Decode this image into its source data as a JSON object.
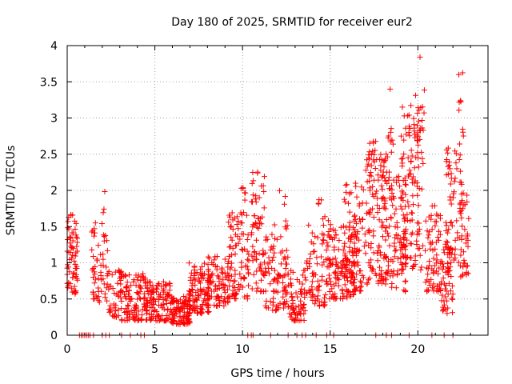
{
  "chart_data": {
    "type": "scatter",
    "title": "Day 180 of 2025, SRMTID for receiver eur2",
    "xlabel": "GPS time / hours",
    "ylabel": "SRMTID / TECUs",
    "xlim": [
      0,
      24
    ],
    "ylim": [
      0,
      4
    ],
    "xticks": [
      0,
      5,
      10,
      15,
      20
    ],
    "yticks": [
      0,
      0.5,
      1,
      1.5,
      2,
      2.5,
      3,
      3.5,
      4
    ],
    "ytick_labels": [
      "0",
      "0.5",
      "1",
      "1.5",
      "2",
      "2.5",
      "3",
      "3.5",
      "4"
    ],
    "grid": true,
    "marker": "plus",
    "color": "#ff0000",
    "series": [
      {
        "name": "SRMTID",
        "clusters": [
          {
            "x": [
              0.0,
              0.6
            ],
            "y": [
              0.55,
              1.7
            ],
            "n": 70
          },
          {
            "x": [
              1.4,
              2.3
            ],
            "y": [
              0.45,
              1.6
            ],
            "n": 55
          },
          {
            "x": [
              2.0,
              2.25
            ],
            "y": [
              1.3,
              2.08
            ],
            "n": 6
          },
          {
            "x": [
              2.3,
              3.1
            ],
            "y": [
              0.25,
              0.9
            ],
            "n": 50
          },
          {
            "x": [
              3.1,
              4.6
            ],
            "y": [
              0.2,
              0.85
            ],
            "n": 110
          },
          {
            "x": [
              4.5,
              5.9
            ],
            "y": [
              0.2,
              0.75
            ],
            "n": 110
          },
          {
            "x": [
              5.9,
              7.0
            ],
            "y": [
              0.15,
              0.55
            ],
            "n": 110
          },
          {
            "x": [
              6.9,
              8.2
            ],
            "y": [
              0.3,
              1.0
            ],
            "n": 110
          },
          {
            "x": [
              8.0,
              9.3
            ],
            "y": [
              0.4,
              1.1
            ],
            "n": 90
          },
          {
            "x": [
              9.2,
              10.4
            ],
            "y": [
              0.5,
              1.7
            ],
            "n": 90
          },
          {
            "x": [
              9.9,
              10.2
            ],
            "y": [
              1.7,
              2.3
            ],
            "n": 6
          },
          {
            "x": [
              10.5,
              11.3
            ],
            "y": [
              0.6,
              2.3
            ],
            "n": 70
          },
          {
            "x": [
              11.3,
              12.6
            ],
            "y": [
              0.3,
              1.4
            ],
            "n": 90
          },
          {
            "x": [
              11.8,
              12.6
            ],
            "y": [
              1.4,
              2.0
            ],
            "n": 8
          },
          {
            "x": [
              12.6,
              13.6
            ],
            "y": [
              0.2,
              0.9
            ],
            "n": 70
          },
          {
            "x": [
              13.6,
              14.8
            ],
            "y": [
              0.4,
              1.6
            ],
            "n": 70
          },
          {
            "x": [
              14.1,
              14.7
            ],
            "y": [
              1.6,
              2.0
            ],
            "n": 6
          },
          {
            "x": [
              14.8,
              16.5
            ],
            "y": [
              0.5,
              1.6
            ],
            "n": 140
          },
          {
            "x": [
              15.8,
              17.0
            ],
            "y": [
              0.6,
              2.1
            ],
            "n": 90
          },
          {
            "x": [
              17.0,
              18.2
            ],
            "y": [
              0.7,
              2.5
            ],
            "n": 110
          },
          {
            "x": [
              17.2,
              17.6
            ],
            "y": [
              2.0,
              2.9
            ],
            "n": 14
          },
          {
            "x": [
              18.0,
              19.3
            ],
            "y": [
              0.6,
              2.2
            ],
            "n": 110
          },
          {
            "x": [
              18.1,
              18.6
            ],
            "y": [
              2.2,
              3.4
            ],
            "n": 14
          },
          {
            "x": [
              19.0,
              20.3
            ],
            "y": [
              0.9,
              3.2
            ],
            "n": 130
          },
          {
            "x": [
              19.8,
              20.4
            ],
            "y": [
              2.5,
              3.87
            ],
            "n": 16
          },
          {
            "x": [
              20.4,
              21.3
            ],
            "y": [
              0.6,
              1.8
            ],
            "n": 70
          },
          {
            "x": [
              21.3,
              22.0
            ],
            "y": [
              0.3,
              1.3
            ],
            "n": 60
          },
          {
            "x": [
              21.6,
              22.5
            ],
            "y": [
              1.0,
              2.6
            ],
            "n": 60
          },
          {
            "x": [
              22.3,
              22.6
            ],
            "y": [
              2.6,
              3.65
            ],
            "n": 10
          },
          {
            "x": [
              22.4,
              22.9
            ],
            "y": [
              0.8,
              2.0
            ],
            "n": 40
          }
        ],
        "zero_points_x": [
          0.7,
          0.8,
          0.9,
          1.0,
          1.1,
          1.2,
          1.3,
          1.5,
          2.0,
          2.2,
          2.4,
          3.1,
          3.6,
          4.2,
          4.4,
          10.3,
          10.5,
          10.6,
          11.6,
          12.6,
          13.1,
          13.4,
          13.6,
          14.2,
          14.8,
          15.2,
          17.6,
          18.2,
          18.5,
          19.5,
          20.8,
          21.5,
          22.0
        ]
      }
    ]
  }
}
